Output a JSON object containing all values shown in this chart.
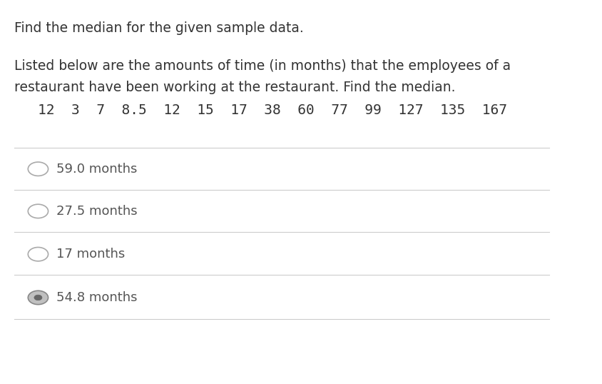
{
  "title": "Find the median for the given sample data.",
  "description_line1": "Listed below are the amounts of time (in months) that the employees of a",
  "description_line2": "restaurant have been working at the restaurant. Find the median.",
  "data_row": "12  3  7  8.5  12  15  17  38  60  77  99  127  135  167",
  "options": [
    {
      "label": "59.0 months",
      "selected": false
    },
    {
      "label": "27.5 months",
      "selected": false
    },
    {
      "label": "17 months",
      "selected": false
    },
    {
      "label": "54.8 months",
      "selected": true
    }
  ],
  "bg_color": "#ffffff",
  "text_color": "#333333",
  "option_text_color": "#555555",
  "line_color": "#cccccc",
  "radio_color": "#aaaaaa",
  "selected_radio_color": "#888888",
  "title_fontsize": 13.5,
  "body_fontsize": 13.5,
  "data_fontsize": 14,
  "option_fontsize": 13
}
